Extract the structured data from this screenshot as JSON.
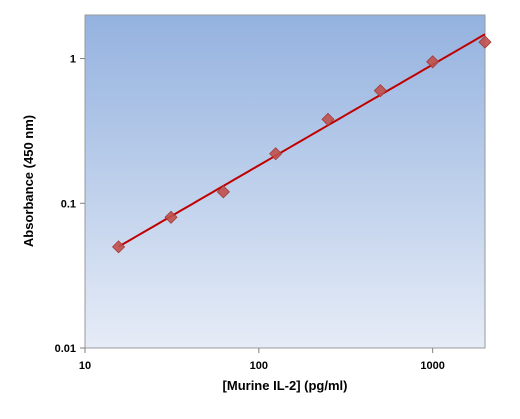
{
  "chart_data": {
    "type": "scatter",
    "title": "",
    "xlabel": "[Murine IL-2] (pg/ml)",
    "ylabel": "Absorbance (450 nm)",
    "x_scale": "log",
    "y_scale": "log",
    "xlim": [
      10,
      2000
    ],
    "ylim": [
      0.01,
      2
    ],
    "x_ticks": [
      10,
      100,
      1000
    ],
    "x_tick_labels": [
      "10",
      "100",
      "1000"
    ],
    "y_ticks": [
      0.01,
      0.1,
      1
    ],
    "y_tick_labels": [
      "0.01",
      "0.1",
      "1"
    ],
    "grid": false,
    "legend": "none",
    "series": [
      {
        "x": [
          15.6,
          31.25,
          62.5,
          125,
          250,
          500,
          1000,
          2000
        ],
        "y": [
          0.05,
          0.08,
          0.12,
          0.22,
          0.38,
          0.6,
          0.95,
          1.3
        ],
        "marker": "diamond",
        "color": "#c0504d",
        "fit_line": true,
        "fit_color": "#c00000"
      }
    ],
    "plot_background": {
      "gradient_top": "#94b2df",
      "gradient_bottom": "#e6ecf7"
    }
  }
}
